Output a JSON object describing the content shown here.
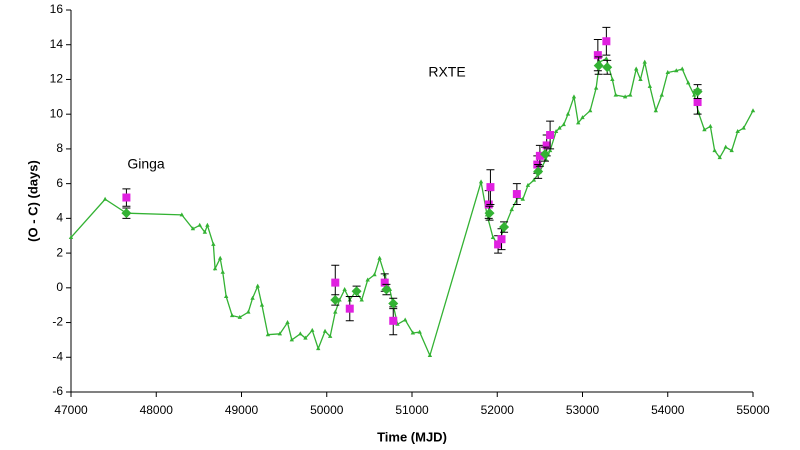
{
  "chart_data": {
    "type": "line",
    "xlabel": "Time  (MJD)",
    "ylabel": "(O - C)  (days)",
    "annotations": [
      "Ginga",
      "RXTE"
    ],
    "xlim": [
      47000,
      55000
    ],
    "xticks": [
      47000,
      48000,
      49000,
      50000,
      51000,
      52000,
      53000,
      54000,
      55000
    ],
    "ylim": [
      -6,
      16
    ],
    "yticks": [
      -6,
      -4,
      -2,
      0,
      2,
      4,
      6,
      8,
      10,
      12,
      14,
      16
    ],
    "grid": false,
    "series": [
      {
        "color": "#33b233",
        "marker": "triangle",
        "x": [
          47000,
          47400,
          47650,
          48300,
          48430,
          48510,
          48570,
          48600,
          48670,
          48690,
          48750,
          48780,
          48820,
          48890,
          48980,
          49080,
          49130,
          49190,
          49240,
          49310,
          49450,
          49540,
          49590,
          49690,
          49750,
          49830,
          49900,
          49980,
          50040,
          50100,
          50150,
          50210,
          50270,
          50340,
          50410,
          50480,
          50560,
          50620,
          50680,
          50740,
          50780,
          50830,
          50920,
          51010,
          51090,
          51210,
          51810,
          51880,
          51950,
          52010,
          52070,
          52170,
          52240,
          52300,
          52360,
          52430,
          52500,
          52570,
          52620,
          52690,
          52730,
          52780,
          52830,
          52900,
          52950,
          53000,
          53090,
          53160,
          53200,
          53280,
          53350,
          53390,
          53500,
          53560,
          53630,
          53680,
          53730,
          53790,
          53860,
          53930,
          54000,
          54100,
          54170,
          54240,
          54310,
          54360,
          54430,
          54500,
          54550,
          54610,
          54680,
          54750,
          54820,
          54890,
          55000
        ],
        "values": [
          2.9,
          5.1,
          4.3,
          4.2,
          3.4,
          3.6,
          3.2,
          3.6,
          2.5,
          1.1,
          1.7,
          0.9,
          -0.5,
          -1.6,
          -1.7,
          -1.4,
          -0.6,
          0.1,
          -1.0,
          -2.7,
          -2.65,
          -2.0,
          -3.0,
          -2.65,
          -2.9,
          -2.45,
          -3.5,
          -2.5,
          -2.8,
          -1.4,
          -0.7,
          -0.1,
          -0.7,
          -0.2,
          -0.7,
          0.45,
          0.75,
          1.7,
          0.75,
          -0.1,
          -1.0,
          -2.1,
          -1.85,
          -2.6,
          -2.55,
          -3.9,
          6.1,
          4.2,
          2.9,
          2.5,
          3.3,
          4.5,
          5.2,
          5.1,
          5.9,
          6.2,
          6.7,
          7.4,
          7.9,
          9.0,
          9.2,
          9.4,
          10.0,
          11.0,
          9.5,
          9.8,
          10.2,
          11.5,
          13.0,
          13.2,
          12.0,
          11.1,
          11.0,
          11.1,
          12.6,
          12.0,
          13.0,
          11.6,
          10.2,
          11.1,
          12.4,
          12.5,
          12.6,
          11.8,
          11.1,
          10.1,
          9.1,
          9.3,
          7.9,
          7.5,
          8.1,
          7.9,
          9.0,
          9.2,
          10.2
        ]
      },
      {
        "color": "#e020e0",
        "marker": "square",
        "x": [
          47650,
          50100,
          50270,
          50680,
          50780,
          51900,
          51920,
          52010,
          52050,
          52230,
          52470,
          52500,
          52580,
          52620,
          53180,
          53280,
          54350
        ],
        "values": [
          5.2,
          0.3,
          -1.2,
          0.3,
          -1.9,
          4.8,
          5.8,
          2.5,
          2.8,
          5.4,
          7.1,
          7.6,
          8.2,
          8.8,
          13.4,
          14.2,
          10.7
        ],
        "errors": [
          0.5,
          1.0,
          0.7,
          0.5,
          0.8,
          0.8,
          1.0,
          0.5,
          0.6,
          0.6,
          0.5,
          0.6,
          0.6,
          0.8,
          0.9,
          0.8,
          0.7
        ]
      },
      {
        "color": "#33b233",
        "marker": "diamond",
        "x": [
          47650,
          50100,
          50350,
          50700,
          50780,
          51910,
          52080,
          52480,
          52560,
          53190,
          53290,
          54350
        ],
        "values": [
          4.3,
          -0.7,
          -0.2,
          -0.1,
          -0.9,
          4.3,
          3.5,
          6.7,
          7.7,
          12.8,
          12.7,
          11.3
        ],
        "errors": [
          0.3,
          0.3,
          0.3,
          0.3,
          0.3,
          0.4,
          0.3,
          0.4,
          0.4,
          0.5,
          0.4,
          0.4
        ]
      }
    ]
  }
}
